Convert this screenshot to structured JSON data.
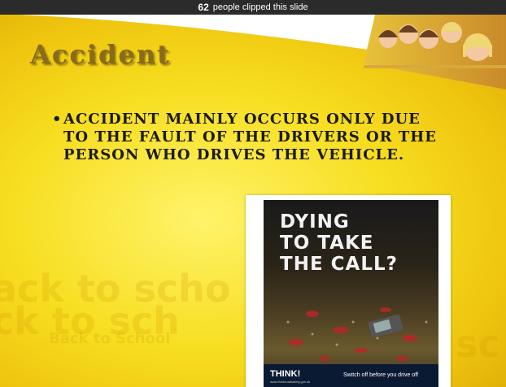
{
  "topbar": {
    "count": "62",
    "text": "people clipped this slide"
  },
  "slide": {
    "title": "Accident",
    "bullet": "Accident mainly occurs only due to the fault of the drivers or the person who drives the vehicle.",
    "watermark": {
      "line1": "ack to scho",
      "line2": "ck to sch",
      "line3": "Back to School",
      "line4": "sc"
    }
  },
  "poster": {
    "headline_1": "DYING",
    "headline_2": "TO TAKE",
    "headline_3": "THE CALL?",
    "brand": "THINK!",
    "tagline": "Switch off before you drive off",
    "site": "www.thinkroadsafety.gov.uk"
  }
}
